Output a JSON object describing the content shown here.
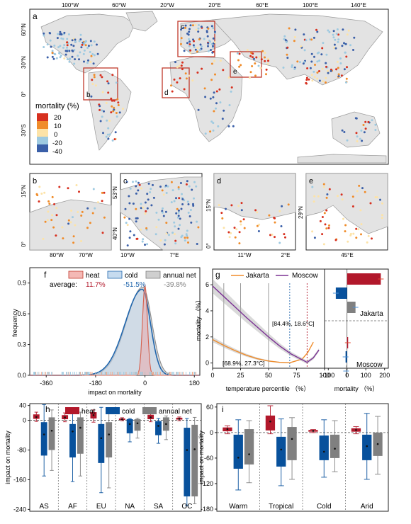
{
  "figure": {
    "panel_labels": {
      "a": "a",
      "b": "b",
      "c": "c",
      "d": "d",
      "e": "e",
      "f": "f",
      "g": "g",
      "h": "h",
      "i": "i"
    }
  },
  "map_a": {
    "lon_ticks": [
      "100°W",
      "60°W",
      "20°W",
      "20°E",
      "60°E",
      "100°E",
      "140°E"
    ],
    "lat_ticks": [
      "60°N",
      "30°N",
      "0°",
      "30°S"
    ],
    "inset_labels": [
      "b",
      "c",
      "d",
      "e"
    ],
    "legend_title": "mortality (%)",
    "legend_items": [
      {
        "label": "20",
        "color": "#d7301f"
      },
      {
        "label": "10",
        "color": "#f08c2a"
      },
      {
        "label": "0",
        "color": "#fde3a7"
      },
      {
        "label": "-20",
        "color": "#9ecae1"
      },
      {
        "label": "-40",
        "color": "#3a5fa8"
      }
    ]
  },
  "map_b": {
    "label": "b",
    "lat_ticks": [
      "15°N",
      "0°"
    ],
    "lon_ticks": [
      "80°W",
      "70°W"
    ]
  },
  "map_c": {
    "label": "c",
    "lat_ticks": [
      "53°N",
      "40°N"
    ],
    "lon_ticks": [
      "10°W",
      "7°E"
    ]
  },
  "map_d": {
    "label": "d",
    "lat_ticks": [
      "15°N",
      "0°"
    ],
    "lon_ticks": [
      "11°W",
      "2°E"
    ]
  },
  "map_e": {
    "label": "e",
    "lat_ticks": [
      "29°N"
    ],
    "lon_ticks": [
      "45°E"
    ]
  },
  "colors": {
    "heat": "#b2182b",
    "cold": "#08519c",
    "net": "#808080",
    "map_land": "#e3e3e3",
    "map_border": "#9a9a9a"
  },
  "chart_data": [
    {
      "panel": "f",
      "type": "area",
      "xlabel": "impact on mortality",
      "ylabel": "frequency",
      "x_ticks": [
        "-360",
        "-180",
        "0",
        "180"
      ],
      "y_ticks": [
        "0.0",
        "0.3",
        "0.6",
        "0.9"
      ],
      "xlim": [
        -420,
        200
      ],
      "ylim": [
        0,
        1.05
      ],
      "legend": [
        "heat",
        "cold",
        "annual net"
      ],
      "average_label": "average:",
      "averages": [
        "11.7%",
        "-51.5%",
        "-39.8%"
      ],
      "series": [
        {
          "name": "heat",
          "center": 0,
          "spread": 9,
          "peak": 0.88
        },
        {
          "name": "cold",
          "center": -10,
          "spread_left": 62,
          "spread_right": 30,
          "peak": 0.84
        },
        {
          "name": "annual net",
          "center": -8,
          "spread_left": 60,
          "spread_right": 33,
          "peak": 0.86
        }
      ]
    },
    {
      "panel": "g",
      "type": "line",
      "xlabel": "temperature percentile （%）",
      "ylabel": "mortality （%）",
      "x_ticks": [
        "0",
        "25",
        "50",
        "75",
        "100"
      ],
      "y_ticks": [
        "0",
        "2",
        "4",
        "6"
      ],
      "xlim": [
        0,
        100
      ],
      "ylim": [
        -0.4,
        7.2
      ],
      "vlines": [
        10,
        25,
        50
      ],
      "series": [
        {
          "name": "Jakarta",
          "color": "#f08c2a",
          "x": [
            0,
            10,
            20,
            30,
            40,
            50,
            60,
            68.9,
            80,
            85,
            90
          ],
          "y": [
            1.8,
            1.35,
            0.95,
            0.6,
            0.33,
            0.15,
            0.05,
            0.02,
            0.3,
            0.8,
            1.6
          ]
        },
        {
          "name": "Moscow",
          "color": "#7b3294",
          "x": [
            0,
            10,
            20,
            30,
            40,
            50,
            60,
            70,
            84.4,
            90,
            95
          ],
          "y": [
            5.9,
            5.1,
            4.3,
            3.5,
            2.75,
            2.0,
            1.3,
            0.7,
            0.05,
            0.4,
            1.0
          ]
        }
      ],
      "annotations": [
        "[84.4%, 18.6°C]",
        "[68.9%, 27.3°C]"
      ],
      "bar_subpanel": {
        "xlabel": "mortality （%）",
        "x_ticks": [
          "-100",
          "0",
          "100",
          "200"
        ],
        "xlim": [
          -120,
          220
        ],
        "cities": [
          "Jakarta",
          "Moscow"
        ],
        "Jakarta": {
          "heat": 180,
          "cold": -60,
          "net": 45
        },
        "Moscow": {
          "heat": 4,
          "cold": -8,
          "net": -5
        }
      }
    },
    {
      "panel": "h",
      "type": "bar",
      "ylabel": "impact on mortality",
      "y_ticks": [
        "40",
        "0",
        "-80",
        "-160",
        "-240"
      ],
      "ylim": [
        -245,
        45
      ],
      "legend": [
        "heat",
        "cold",
        "annual net"
      ],
      "categories": [
        "AS",
        "AF",
        "EU",
        "NA",
        "SA",
        "OC"
      ],
      "series": [
        {
          "name": "heat",
          "box": [
            [
              4,
              16
            ],
            [
              3,
              14
            ],
            [
              5,
              22
            ],
            [
              1,
              5
            ],
            [
              3,
              15
            ],
            [
              2,
              7
            ]
          ],
          "whisker": [
            [
              -3,
              22
            ],
            [
              -4,
              20
            ],
            [
              -5,
              28
            ],
            [
              -1,
              7
            ],
            [
              -4,
              23
            ],
            [
              -1,
              9
            ]
          ],
          "mean": [
            9,
            8,
            14,
            3,
            8,
            4
          ]
        },
        {
          "name": "cold",
          "box": [
            [
              -95,
              -5
            ],
            [
              -100,
              -10
            ],
            [
              -115,
              -10
            ],
            [
              -35,
              3
            ],
            [
              -40,
              -2
            ],
            [
              -205,
              -20
            ]
          ],
          "whisker": [
            [
              -150,
              42
            ],
            [
              -165,
              30
            ],
            [
              -195,
              35
            ],
            [
              -58,
              5
            ],
            [
              -62,
              5
            ],
            [
              -230,
              5
            ]
          ],
          "mean": [
            -38,
            -30,
            -48,
            -10,
            -15,
            -80
          ]
        },
        {
          "name": "annual net",
          "box": [
            [
              -80,
              8
            ],
            [
              -90,
              8
            ],
            [
              -100,
              -5
            ],
            [
              -28,
              3
            ],
            [
              -28,
              8
            ],
            [
              -205,
              -12
            ]
          ],
          "whisker": [
            [
              -135,
              28
            ],
            [
              -150,
              22
            ],
            [
              -182,
              27
            ],
            [
              -48,
              6
            ],
            [
              -52,
              12
            ],
            [
              -225,
              8
            ]
          ],
          "mean": [
            -28,
            -20,
            -38,
            -8,
            -10,
            -78
          ]
        }
      ]
    },
    {
      "panel": "i",
      "type": "bar",
      "ylabel": "impact on mortality",
      "y_ticks": [
        "60",
        "0",
        "-60",
        "-120",
        "-180"
      ],
      "ylim": [
        -185,
        68
      ],
      "categories": [
        "Warm",
        "Tropical",
        "Cold",
        "Arid"
      ],
      "series": [
        {
          "name": "heat",
          "box": [
            [
              3,
              12
            ],
            [
              5,
              40
            ],
            [
              2,
              6
            ],
            [
              2,
              10
            ]
          ],
          "whisker": [
            [
              -3,
              16
            ],
            [
              -3,
              63
            ],
            [
              0,
              7
            ],
            [
              -3,
              14
            ]
          ],
          "mean": [
            8,
            26,
            4,
            6
          ]
        },
        {
          "name": "cold",
          "box": [
            [
              -85,
              -5
            ],
            [
              -80,
              -10
            ],
            [
              -65,
              -7
            ],
            [
              -65,
              -5
            ]
          ],
          "whisker": [
            [
              -135,
              30
            ],
            [
              -125,
              32
            ],
            [
              -105,
              30
            ],
            [
              -110,
              45
            ]
          ],
          "mean": [
            -59,
            -40,
            -45,
            -32
          ]
        },
        {
          "name": "annual net",
          "box": [
            [
              -75,
              8
            ],
            [
              -65,
              13
            ],
            [
              -60,
              -5
            ],
            [
              -55,
              0
            ]
          ],
          "whisker": [
            [
              -118,
              28
            ],
            [
              -110,
              35
            ],
            [
              -92,
              28
            ],
            [
              -98,
              38
            ]
          ],
          "mean": [
            -51,
            -15,
            -38,
            -27
          ]
        }
      ]
    }
  ]
}
